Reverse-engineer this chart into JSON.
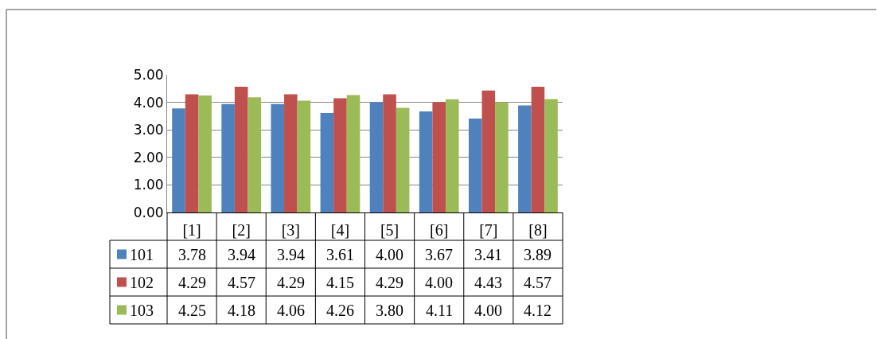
{
  "chart_data": {
    "type": "bar",
    "categories": [
      "[1]",
      "[2]",
      "[3]",
      "[4]",
      "[5]",
      "[6]",
      "[7]",
      "[8]"
    ],
    "series": [
      {
        "name": "101",
        "color": "#4f81bd",
        "values": [
          3.78,
          3.94,
          3.94,
          3.61,
          4.0,
          3.67,
          3.41,
          3.89
        ],
        "value_labels": [
          "3.78",
          "3.94",
          "3.94",
          "3.61",
          "4.00",
          "3.67",
          "3.41",
          "3.89"
        ]
      },
      {
        "name": "102",
        "color": "#c0504d",
        "values": [
          4.29,
          4.57,
          4.29,
          4.15,
          4.29,
          4.0,
          4.43,
          4.57
        ],
        "value_labels": [
          "4.29",
          "4.57",
          "4.29",
          "4.15",
          "4.29",
          "4.00",
          "4.43",
          "4.57"
        ]
      },
      {
        "name": "103",
        "color": "#9bbb59",
        "values": [
          4.25,
          4.18,
          4.06,
          4.26,
          3.8,
          4.11,
          4.0,
          4.12
        ],
        "value_labels": [
          "4.25",
          "4.18",
          "4.06",
          "4.26",
          "3.80",
          "4.11",
          "4.00",
          "4.12"
        ]
      }
    ],
    "ylim": [
      0,
      5
    ],
    "yticks": [
      {
        "value": 0,
        "label": "0.00"
      },
      {
        "value": 1,
        "label": "1.00"
      },
      {
        "value": 2,
        "label": "2.00"
      },
      {
        "value": 3,
        "label": "3.00"
      },
      {
        "value": 4,
        "label": "4.00"
      },
      {
        "value": 5,
        "label": "5.00"
      }
    ],
    "grid": "y",
    "legend": "bottom left"
  }
}
